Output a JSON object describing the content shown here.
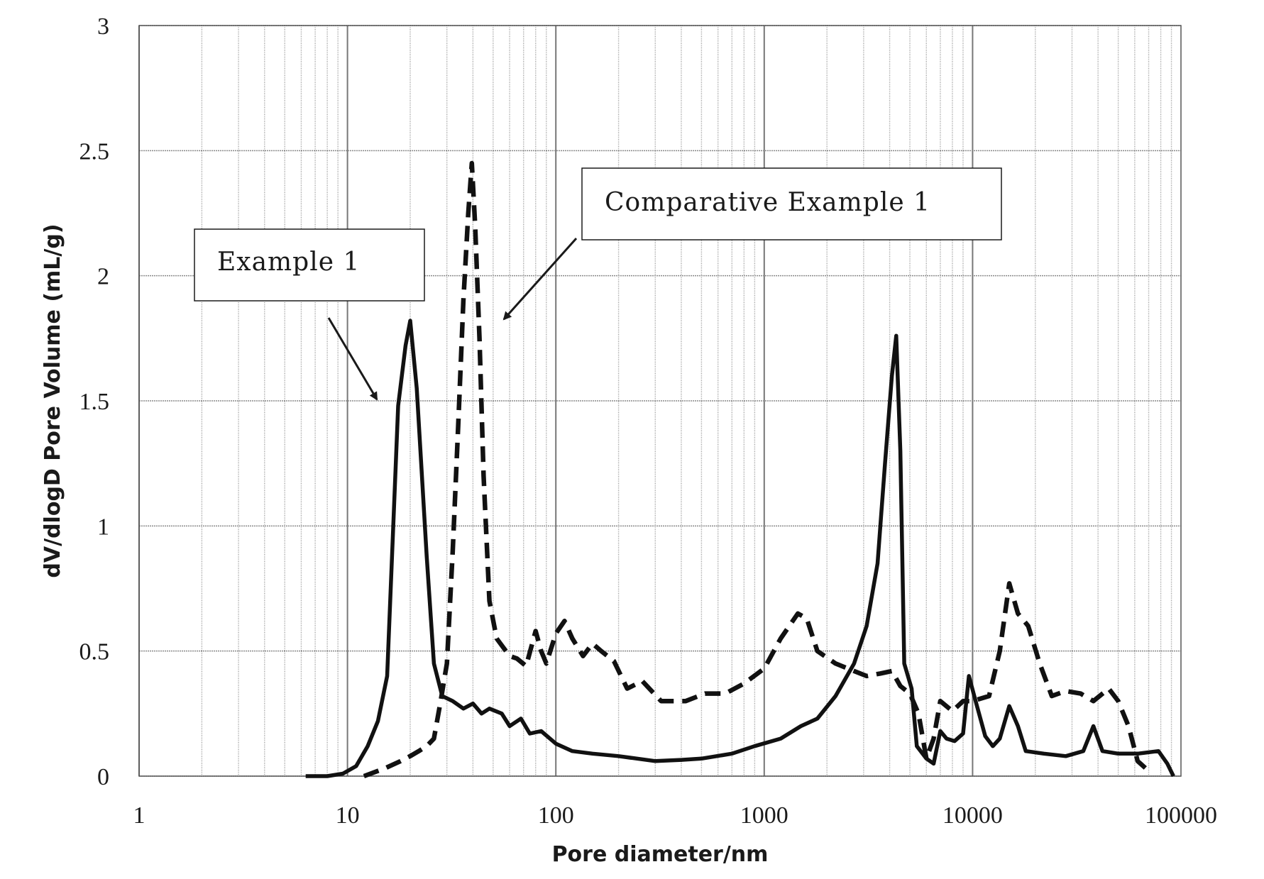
{
  "chart_data": {
    "type": "line",
    "title": "",
    "xlabel": "Pore diameter/nm",
    "ylabel": "dV/dlogD Pore Volume  (mL/g)",
    "xscale": "log",
    "xlim": [
      1,
      100000
    ],
    "ylim": [
      0,
      3
    ],
    "x_ticks": [
      "1",
      "10",
      "100",
      "1000",
      "10000",
      "100000"
    ],
    "y_ticks": [
      "0",
      "0.5",
      "1",
      "1.5",
      "2",
      "2.5",
      "3"
    ],
    "grid": true,
    "series": [
      {
        "name": "Example 1",
        "style": "solid",
        "color": "#111111",
        "points": [
          [
            6.3,
            0.0
          ],
          [
            8,
            0.0
          ],
          [
            9.5,
            0.01
          ],
          [
            11,
            0.04
          ],
          [
            12.5,
            0.12
          ],
          [
            14,
            0.22
          ],
          [
            15.5,
            0.4
          ],
          [
            17.5,
            1.48
          ],
          [
            19,
            1.72
          ],
          [
            20,
            1.82
          ],
          [
            21.5,
            1.55
          ],
          [
            24,
            0.88
          ],
          [
            26,
            0.45
          ],
          [
            28.5,
            0.32
          ],
          [
            32,
            0.3
          ],
          [
            36,
            0.27
          ],
          [
            40,
            0.29
          ],
          [
            44,
            0.25
          ],
          [
            48,
            0.27
          ],
          [
            55,
            0.25
          ],
          [
            60,
            0.2
          ],
          [
            68,
            0.23
          ],
          [
            75,
            0.17
          ],
          [
            85,
            0.18
          ],
          [
            100,
            0.13
          ],
          [
            120,
            0.1
          ],
          [
            150,
            0.09
          ],
          [
            200,
            0.08
          ],
          [
            300,
            0.06
          ],
          [
            400,
            0.065
          ],
          [
            500,
            0.07
          ],
          [
            700,
            0.09
          ],
          [
            900,
            0.12
          ],
          [
            1200,
            0.15
          ],
          [
            1500,
            0.2
          ],
          [
            1800,
            0.23
          ],
          [
            2200,
            0.32
          ],
          [
            2700,
            0.45
          ],
          [
            3100,
            0.6
          ],
          [
            3500,
            0.85
          ],
          [
            3800,
            1.25
          ],
          [
            4100,
            1.6
          ],
          [
            4300,
            1.76
          ],
          [
            4500,
            1.3
          ],
          [
            4700,
            0.45
          ],
          [
            5100,
            0.35
          ],
          [
            5400,
            0.12
          ],
          [
            6000,
            0.07
          ],
          [
            6500,
            0.05
          ],
          [
            7000,
            0.18
          ],
          [
            7500,
            0.15
          ],
          [
            8200,
            0.14
          ],
          [
            9000,
            0.17
          ],
          [
            9600,
            0.4
          ],
          [
            10500,
            0.28
          ],
          [
            11500,
            0.16
          ],
          [
            12500,
            0.12
          ],
          [
            13500,
            0.15
          ],
          [
            15000,
            0.28
          ],
          [
            16500,
            0.2
          ],
          [
            18000,
            0.1
          ],
          [
            22000,
            0.09
          ],
          [
            28000,
            0.08
          ],
          [
            34000,
            0.1
          ],
          [
            38000,
            0.2
          ],
          [
            42000,
            0.1
          ],
          [
            50000,
            0.09
          ],
          [
            62000,
            0.09
          ],
          [
            78000,
            0.1
          ],
          [
            86000,
            0.05
          ],
          [
            92000,
            0.0
          ]
        ]
      },
      {
        "name": "Comparative Example 1",
        "style": "dashed",
        "color": "#111111",
        "points": [
          [
            12,
            0.0
          ],
          [
            15,
            0.03
          ],
          [
            18,
            0.06
          ],
          [
            20,
            0.08
          ],
          [
            22,
            0.1
          ],
          [
            24,
            0.12
          ],
          [
            26,
            0.15
          ],
          [
            28,
            0.3
          ],
          [
            30,
            0.45
          ],
          [
            32,
            0.9
          ],
          [
            34,
            1.4
          ],
          [
            36,
            1.9
          ],
          [
            38,
            2.25
          ],
          [
            39.5,
            2.45
          ],
          [
            41,
            2.2
          ],
          [
            43,
            1.75
          ],
          [
            45,
            1.2
          ],
          [
            48,
            0.7
          ],
          [
            52,
            0.55
          ],
          [
            60,
            0.48
          ],
          [
            65,
            0.47
          ],
          [
            72,
            0.44
          ],
          [
            80,
            0.58
          ],
          [
            85,
            0.5
          ],
          [
            90,
            0.45
          ],
          [
            100,
            0.57
          ],
          [
            110,
            0.62
          ],
          [
            120,
            0.55
          ],
          [
            135,
            0.48
          ],
          [
            150,
            0.53
          ],
          [
            165,
            0.5
          ],
          [
            190,
            0.46
          ],
          [
            220,
            0.35
          ],
          [
            260,
            0.38
          ],
          [
            320,
            0.3
          ],
          [
            420,
            0.3
          ],
          [
            520,
            0.33
          ],
          [
            650,
            0.33
          ],
          [
            800,
            0.37
          ],
          [
            1000,
            0.43
          ],
          [
            1200,
            0.55
          ],
          [
            1450,
            0.65
          ],
          [
            1600,
            0.63
          ],
          [
            1800,
            0.5
          ],
          [
            2200,
            0.45
          ],
          [
            2700,
            0.42
          ],
          [
            3100,
            0.4
          ],
          [
            3600,
            0.41
          ],
          [
            4100,
            0.42
          ],
          [
            4500,
            0.36
          ],
          [
            5000,
            0.33
          ],
          [
            5500,
            0.25
          ],
          [
            6000,
            0.07
          ],
          [
            6500,
            0.15
          ],
          [
            7000,
            0.3
          ],
          [
            8000,
            0.26
          ],
          [
            9000,
            0.3
          ],
          [
            10000,
            0.3
          ],
          [
            12000,
            0.32
          ],
          [
            13500,
            0.5
          ],
          [
            15000,
            0.77
          ],
          [
            16500,
            0.65
          ],
          [
            18500,
            0.6
          ],
          [
            21000,
            0.45
          ],
          [
            24000,
            0.32
          ],
          [
            28000,
            0.34
          ],
          [
            33000,
            0.33
          ],
          [
            38000,
            0.3
          ],
          [
            45000,
            0.35
          ],
          [
            50000,
            0.3
          ],
          [
            56000,
            0.2
          ],
          [
            62000,
            0.06
          ],
          [
            68000,
            0.03
          ],
          [
            72000,
            0.02
          ]
        ]
      }
    ],
    "annotations": [
      {
        "text": "Example 1",
        "target_series": "Example 1"
      },
      {
        "text": "Comparative Example 1",
        "target_series": "Comparative Example 1"
      }
    ]
  }
}
